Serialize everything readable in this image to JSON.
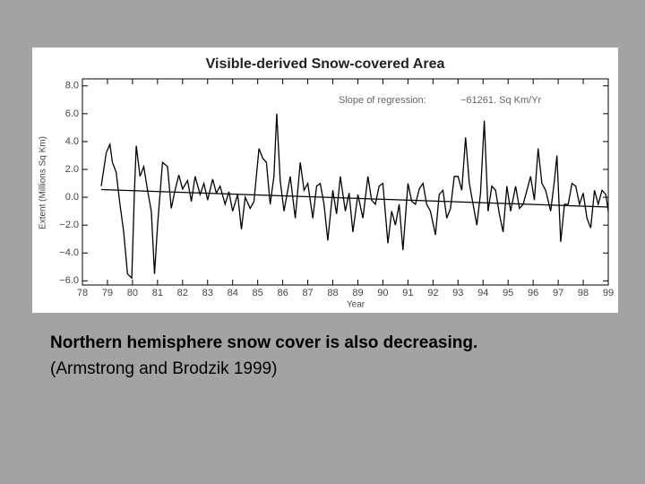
{
  "chart_data": {
    "type": "line",
    "title": "Visible-derived Snow-covered Area",
    "annotations": [
      "Slope of regression:",
      "−61261. Sq Km/Yr"
    ],
    "xlabel": "Year",
    "ylabel": "Extent (Millions Sq Km)",
    "xlim": [
      78,
      99
    ],
    "ylim": [
      -6.3,
      8.5
    ],
    "xticks": [
      78,
      79,
      80,
      81,
      82,
      83,
      84,
      85,
      86,
      87,
      88,
      89,
      90,
      91,
      92,
      93,
      94,
      95,
      96,
      97,
      98,
      99
    ],
    "yticks": [
      {
        "value": 8,
        "label": "8.0"
      },
      {
        "value": 6,
        "label": "6.0"
      },
      {
        "value": 4,
        "label": "4.0"
      },
      {
        "value": 2,
        "label": "2.0"
      },
      {
        "value": 0,
        "label": "0.0"
      },
      {
        "value": -2,
        "label": "−2.0"
      },
      {
        "value": -4,
        "label": "−4.0"
      },
      {
        "value": -6,
        "label": "−6.0"
      }
    ],
    "series": [
      {
        "color": "#000000",
        "x": [
          78.75,
          78.95,
          79.1,
          79.2,
          79.35,
          79.5,
          79.65,
          79.8,
          79.97,
          80.08,
          80.15,
          80.3,
          80.45,
          80.6,
          80.75,
          80.88,
          81.0,
          81.2,
          81.4,
          81.55,
          81.7,
          81.85,
          82.0,
          82.2,
          82.35,
          82.5,
          82.7,
          82.85,
          83.0,
          83.2,
          83.35,
          83.5,
          83.7,
          83.85,
          84.0,
          84.2,
          84.35,
          84.5,
          84.7,
          84.85,
          85.05,
          85.2,
          85.35,
          85.5,
          85.65,
          85.76,
          85.9,
          86.05,
          86.3,
          86.5,
          86.7,
          86.85,
          87.0,
          87.2,
          87.35,
          87.5,
          87.65,
          87.8,
          88.0,
          88.15,
          88.3,
          88.5,
          88.65,
          88.8,
          89.0,
          89.2,
          89.4,
          89.55,
          89.7,
          89.85,
          90.0,
          90.2,
          90.35,
          90.5,
          90.65,
          90.8,
          91.0,
          91.15,
          91.3,
          91.45,
          91.6,
          91.75,
          91.9,
          92.1,
          92.25,
          92.4,
          92.55,
          92.7,
          92.85,
          93.0,
          93.15,
          93.3,
          93.45,
          93.6,
          93.75,
          93.9,
          94.05,
          94.2,
          94.35,
          94.5,
          94.65,
          94.8,
          94.95,
          95.1,
          95.3,
          95.45,
          95.6,
          95.75,
          95.9,
          96.05,
          96.2,
          96.35,
          96.5,
          96.7,
          96.85,
          96.95,
          97.1,
          97.25,
          97.4,
          97.55,
          97.7,
          97.85,
          98.0,
          98.15,
          98.3,
          98.45,
          98.6,
          98.75,
          98.9,
          99.0
        ],
        "values": [
          0.8,
          3.2,
          3.8,
          2.5,
          1.8,
          -0.5,
          -2.5,
          -5.5,
          -5.8,
          0.5,
          3.7,
          1.5,
          2.2,
          0.5,
          -1.0,
          -5.5,
          -2.0,
          2.5,
          2.2,
          -0.8,
          0.5,
          1.6,
          0.6,
          1.2,
          -0.3,
          1.5,
          0.2,
          1.0,
          -0.2,
          1.3,
          0.3,
          0.8,
          -0.5,
          0.4,
          -1.0,
          0.2,
          -2.3,
          0.0,
          -0.8,
          -0.3,
          3.5,
          2.8,
          2.5,
          -0.5,
          1.5,
          6.0,
          1.2,
          -1.0,
          1.5,
          -1.5,
          2.5,
          0.5,
          1.0,
          -1.5,
          0.8,
          1.0,
          -0.5,
          -3.1,
          0.5,
          -1.2,
          1.5,
          -1.0,
          0.3,
          -2.5,
          0.2,
          -1.5,
          1.5,
          -0.2,
          -0.5,
          0.8,
          1.0,
          -3.3,
          -1.0,
          -2.0,
          -0.5,
          -3.8,
          1.0,
          -0.3,
          -0.5,
          0.6,
          1.0,
          -0.5,
          -1.0,
          -2.7,
          0.2,
          0.5,
          -1.5,
          -0.8,
          1.5,
          1.5,
          0.5,
          4.3,
          1.0,
          -0.5,
          -2.0,
          0.3,
          5.5,
          -1.0,
          0.8,
          0.5,
          -1.2,
          -2.5,
          0.8,
          -1.0,
          0.8,
          -0.8,
          -0.5,
          0.5,
          1.5,
          -0.2,
          3.5,
          1.0,
          0.5,
          -1.0,
          1.2,
          3.0,
          -3.2,
          -0.5,
          -0.5,
          1.0,
          0.8,
          -0.5,
          0.3,
          -1.5,
          -2.2,
          0.5,
          -0.5,
          0.5,
          0.2,
          -1.0
        ]
      },
      {
        "color": "#000000",
        "x": [
          78.75,
          99.0
        ],
        "values": [
          0.55,
          -0.7
        ]
      }
    ]
  },
  "caption": [
    "Northern hemisphere snow cover is also decreasing.",
    "(Armstrong and Brodzik 1999)"
  ]
}
